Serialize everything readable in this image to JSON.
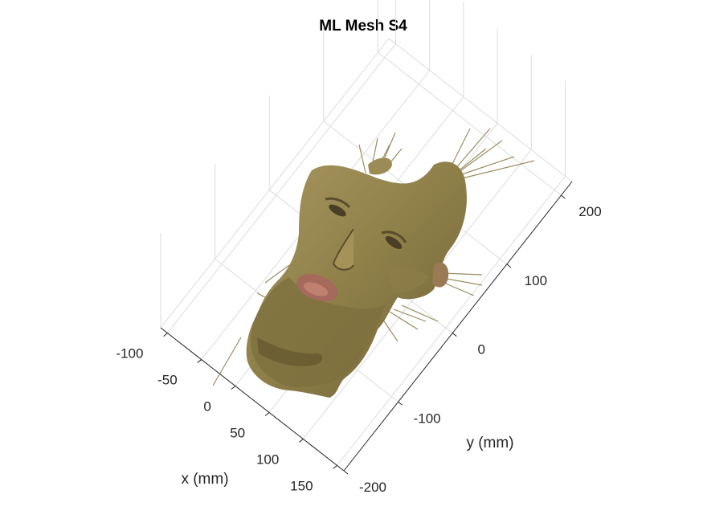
{
  "chart_data": {
    "type": "surface",
    "title": "ML Mesh S4",
    "xlabel": "x (mm)",
    "ylabel": "y (mm)",
    "view": "3d",
    "grid": true,
    "x_ticks": [
      -100,
      -50,
      0,
      50,
      100,
      150
    ],
    "y_ticks": [
      -200,
      -100,
      0,
      100,
      200
    ],
    "xlim": [
      -110,
      160
    ],
    "ylim": [
      -200,
      220
    ],
    "surface_description_colors": {
      "skin": "#9a8a52",
      "shadow": "#6d5f35",
      "highlight": "#b7a56a",
      "lips": "#a0605a",
      "axis": "#262626",
      "grid": "#dcdcdc"
    }
  }
}
